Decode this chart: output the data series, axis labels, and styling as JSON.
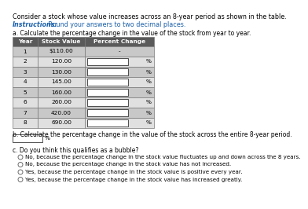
{
  "title": "Consider a stock whose value increases across an 8-year period as shown in the table.",
  "instructions_label": "Instructions:",
  "instructions_text": " Round your answers to two decimal places.",
  "section_a": "a. Calculate the percentage change in the value of the stock from year to year.",
  "table_header": [
    "Year",
    "Stock Value",
    "Percent Change"
  ],
  "table_rows": [
    [
      "1",
      "$110.00",
      "-"
    ],
    [
      "2",
      "120.00",
      ""
    ],
    [
      "3",
      "130.00",
      ""
    ],
    [
      "4",
      "145.00",
      ""
    ],
    [
      "5",
      "160.00",
      ""
    ],
    [
      "6",
      "260.00",
      ""
    ],
    [
      "7",
      "420.00",
      ""
    ],
    [
      "8",
      "690.00",
      ""
    ]
  ],
  "percent_symbol": "%",
  "section_b": "b. Calculate the percentage change in the value of the stock across the entire 8-year period.",
  "section_c": "c. Do you think this qualifies as a bubble?",
  "options": [
    "No, because the percentage change in the stock value fluctuates up and down across the 8 years.",
    "No, because the percentage change in the stock value has not increased.",
    "Yes, because the percentage change in the stock value is positive every year.",
    "Yes, because the percentage change in the stock value has increased greatly."
  ],
  "header_bg": "#5a5a5a",
  "header_text_color": "#ffffff",
  "row_bg_odd": "#c8c8c8",
  "row_bg_even": "#e0e0e0",
  "input_box_color": "#ffffff",
  "input_box_border": "#333333",
  "title_color": "#000000",
  "instructions_label_color": "#1a5fa8",
  "instructions_text_color": "#1a5fa8",
  "body_text_color": "#000000",
  "font_size_title": 5.8,
  "font_size_instructions": 5.8,
  "font_size_section": 5.5,
  "font_size_table": 5.3,
  "font_size_body": 5.3,
  "font_size_options": 5.1
}
